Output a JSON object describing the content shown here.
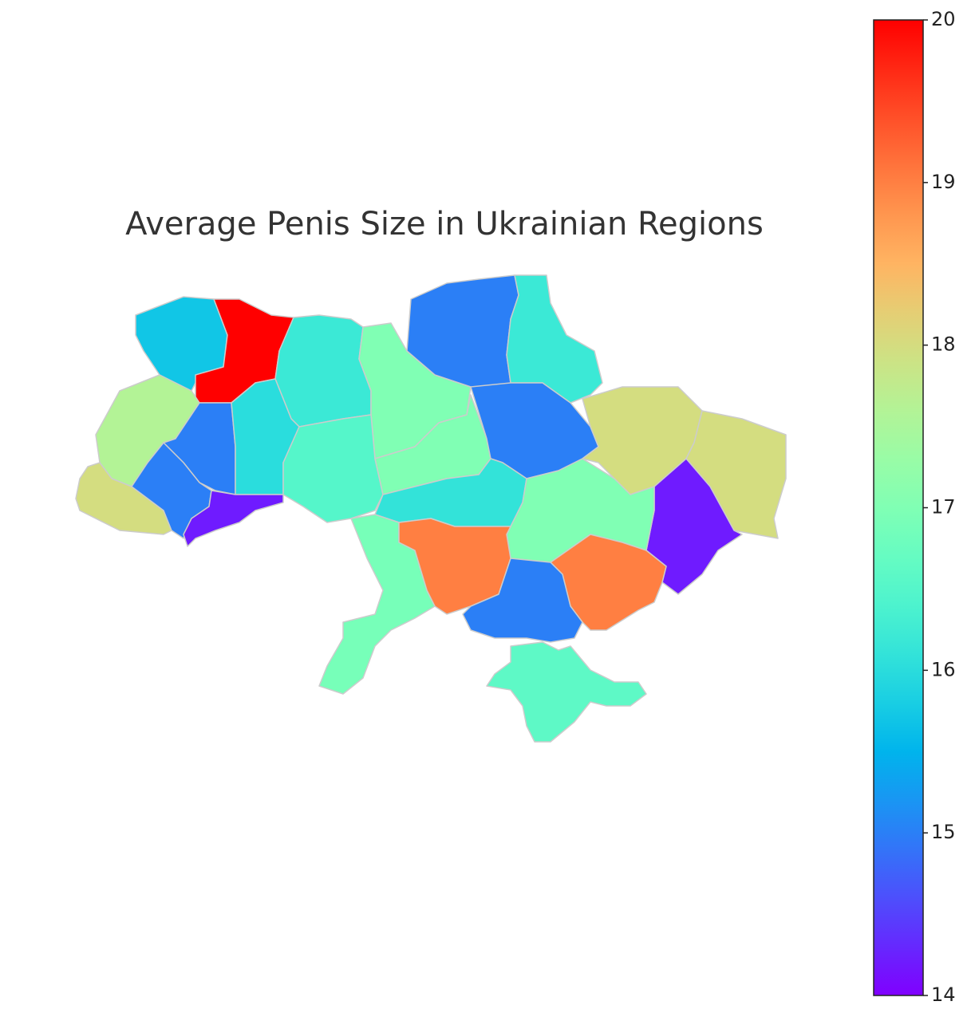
{
  "chart_data": {
    "type": "choropleth",
    "title": "Average Penis Size in Ukrainian Regions",
    "values": [
      15.7,
      20,
      16.2,
      17,
      15,
      16.2,
      17.6,
      15,
      16,
      16.5,
      18,
      15,
      14.2,
      17,
      15,
      18,
      18,
      14.2,
      16.1,
      17,
      16.9,
      19,
      19,
      15,
      16.6
    ],
    "colormap": "rainbow",
    "clim": [
      14,
      20
    ],
    "cticks": [
      14,
      15,
      16,
      17,
      18,
      19,
      20
    ],
    "border_color": "#cccccc"
  }
}
